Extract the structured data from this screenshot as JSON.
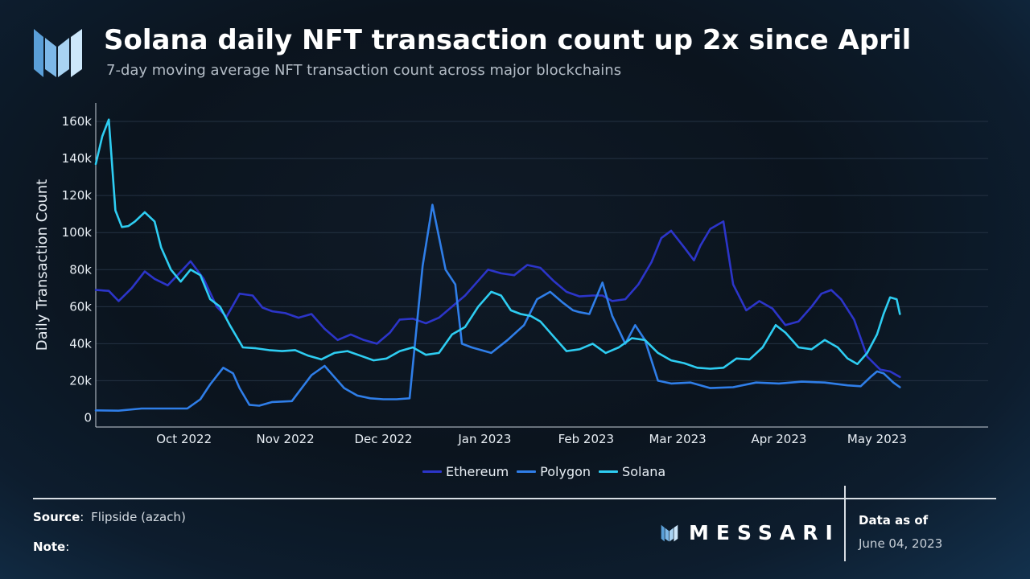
{
  "header": {
    "title": "Solana daily NFT transaction count up 2x since April",
    "subtitle": "7-day moving average NFT transaction count across major blockchains"
  },
  "footer": {
    "source_label": "Source",
    "source_value": "Flipside (azach)",
    "note_label": "Note",
    "brand": "MESSARI",
    "data_as_of_label": "Data as of",
    "data_as_of_date": "June 04, 2023"
  },
  "colors": {
    "Ethereum": "#2c35c9",
    "Polygon": "#2f7ee8",
    "Solana": "#2ecdf2",
    "grid": "#243243",
    "axis_text": "#e8eef4"
  },
  "chart_data": {
    "type": "line",
    "title": "Solana daily NFT transaction count up 2x since April",
    "ylabel": "Daily Transaction Count",
    "xlabel": "",
    "ylim": [
      -5000,
      170000
    ],
    "xlim": [
      "2022-09-04",
      "2023-06-04"
    ],
    "yticks": [
      0,
      20000,
      40000,
      60000,
      80000,
      100000,
      120000,
      140000,
      160000
    ],
    "ytick_labels": [
      "0",
      "20k",
      "40k",
      "60k",
      "80k",
      "100k",
      "120k",
      "140k",
      "160k"
    ],
    "xticks": [
      "2022-10-01",
      "2022-11-01",
      "2022-12-01",
      "2023-01-01",
      "2023-02-01",
      "2023-03-01",
      "2023-04-01",
      "2023-05-01"
    ],
    "xtick_labels": [
      "Oct 2022",
      "Nov 2022",
      "Dec 2022",
      "Jan 2023",
      "Feb 2023",
      "Mar 2023",
      "Apr 2023",
      "May 2023"
    ],
    "grid": true,
    "legend_position": "bottom-center",
    "series": [
      {
        "name": "Ethereum",
        "x": [
          "2022-09-04",
          "2022-09-08",
          "2022-09-11",
          "2022-09-15",
          "2022-09-19",
          "2022-09-22",
          "2022-09-26",
          "2022-09-29",
          "2022-10-03",
          "2022-10-07",
          "2022-10-11",
          "2022-10-14",
          "2022-10-18",
          "2022-10-22",
          "2022-10-25",
          "2022-10-28",
          "2022-11-01",
          "2022-11-05",
          "2022-11-09",
          "2022-11-13",
          "2022-11-17",
          "2022-11-21",
          "2022-11-25",
          "2022-11-29",
          "2022-12-03",
          "2022-12-06",
          "2022-12-10",
          "2022-12-14",
          "2022-12-18",
          "2022-12-22",
          "2022-12-26",
          "2022-12-29",
          "2023-01-02",
          "2023-01-06",
          "2023-01-10",
          "2023-01-14",
          "2023-01-18",
          "2023-01-22",
          "2023-01-26",
          "2023-01-30",
          "2023-02-03",
          "2023-02-06",
          "2023-02-09",
          "2023-02-13",
          "2023-02-17",
          "2023-02-21",
          "2023-02-24",
          "2023-02-27",
          "2023-03-03",
          "2023-03-06",
          "2023-03-08",
          "2023-03-11",
          "2023-03-15",
          "2023-03-18",
          "2023-03-22",
          "2023-03-26",
          "2023-03-30",
          "2023-04-03",
          "2023-04-07",
          "2023-04-11",
          "2023-04-14",
          "2023-04-17",
          "2023-04-20",
          "2023-04-24",
          "2023-04-28",
          "2023-05-02",
          "2023-05-05",
          "2023-05-08"
        ],
        "y": [
          69000,
          68500,
          63000,
          70000,
          79000,
          75000,
          71500,
          77000,
          84500,
          75000,
          60000,
          54500,
          67000,
          66000,
          59500,
          57500,
          56500,
          54000,
          56000,
          48000,
          42000,
          45000,
          42000,
          40000,
          46000,
          53000,
          53500,
          51000,
          54000,
          60000,
          66000,
          72000,
          80000,
          78000,
          77000,
          82500,
          81000,
          74000,
          68000,
          65500,
          66000,
          66000,
          63000,
          64000,
          72000,
          84000,
          97000,
          101000,
          92000,
          85000,
          93000,
          102000,
          106000,
          72000,
          58000,
          63000,
          59000,
          50000,
          52000,
          60000,
          67000,
          69000,
          64000,
          53000,
          33000,
          26000,
          25000,
          22000
        ]
      },
      {
        "name": "Polygon",
        "x": [
          "2022-09-04",
          "2022-09-11",
          "2022-09-18",
          "2022-09-25",
          "2022-10-02",
          "2022-10-06",
          "2022-10-09",
          "2022-10-13",
          "2022-10-16",
          "2022-10-18",
          "2022-10-21",
          "2022-10-24",
          "2022-10-28",
          "2022-11-03",
          "2022-11-09",
          "2022-11-13",
          "2022-11-16",
          "2022-11-19",
          "2022-11-23",
          "2022-11-27",
          "2022-12-01",
          "2022-12-05",
          "2022-12-09",
          "2022-12-13",
          "2022-12-16",
          "2022-12-20",
          "2022-12-23",
          "2022-12-25",
          "2022-12-28",
          "2023-01-03",
          "2023-01-08",
          "2023-01-13",
          "2023-01-17",
          "2023-01-21",
          "2023-01-25",
          "2023-01-28",
          "2023-01-30",
          "2023-02-02",
          "2023-02-06",
          "2023-02-09",
          "2023-02-13",
          "2023-02-16",
          "2023-02-19",
          "2023-02-23",
          "2023-02-27",
          "2023-03-05",
          "2023-03-11",
          "2023-03-18",
          "2023-03-25",
          "2023-04-01",
          "2023-04-08",
          "2023-04-15",
          "2023-04-22",
          "2023-04-26",
          "2023-04-29",
          "2023-05-01",
          "2023-05-03",
          "2023-05-06",
          "2023-05-08"
        ],
        "y": [
          4000,
          3800,
          5000,
          5000,
          5000,
          10000,
          18000,
          27000,
          24000,
          16000,
          7000,
          6500,
          8500,
          9000,
          23000,
          28000,
          22000,
          16000,
          12000,
          10500,
          10000,
          10000,
          10500,
          82000,
          115000,
          80000,
          72000,
          40000,
          38000,
          35000,
          42000,
          50000,
          64000,
          68000,
          62000,
          58000,
          57000,
          56000,
          73000,
          55000,
          40000,
          50000,
          42000,
          20000,
          18500,
          19000,
          16000,
          16500,
          19000,
          18500,
          19500,
          19000,
          17500,
          17000,
          22000,
          25000,
          24000,
          19000,
          16500
        ]
      },
      {
        "name": "Solana",
        "x": [
          "2022-09-04",
          "2022-09-06",
          "2022-09-08",
          "2022-09-10",
          "2022-09-12",
          "2022-09-14",
          "2022-09-16",
          "2022-09-19",
          "2022-09-22",
          "2022-09-24",
          "2022-09-27",
          "2022-09-30",
          "2022-10-03",
          "2022-10-06",
          "2022-10-09",
          "2022-10-12",
          "2022-10-15",
          "2022-10-19",
          "2022-10-23",
          "2022-10-27",
          "2022-10-31",
          "2022-11-04",
          "2022-11-08",
          "2022-11-12",
          "2022-11-16",
          "2022-11-20",
          "2022-11-24",
          "2022-11-28",
          "2022-12-02",
          "2022-12-06",
          "2022-12-10",
          "2022-12-14",
          "2022-12-18",
          "2022-12-22",
          "2022-12-26",
          "2022-12-30",
          "2023-01-03",
          "2023-01-06",
          "2023-01-09",
          "2023-01-12",
          "2023-01-15",
          "2023-01-18",
          "2023-01-22",
          "2023-01-26",
          "2023-01-30",
          "2023-02-03",
          "2023-02-07",
          "2023-02-11",
          "2023-02-15",
          "2023-02-19",
          "2023-02-23",
          "2023-02-27",
          "2023-03-03",
          "2023-03-07",
          "2023-03-11",
          "2023-03-15",
          "2023-03-19",
          "2023-03-23",
          "2023-03-27",
          "2023-03-31",
          "2023-04-03",
          "2023-04-07",
          "2023-04-11",
          "2023-04-15",
          "2023-04-19",
          "2023-04-22",
          "2023-04-25",
          "2023-04-28",
          "2023-05-01",
          "2023-05-03",
          "2023-05-05",
          "2023-05-07",
          "2023-05-08"
        ],
        "y": [
          137000,
          152000,
          161000,
          112000,
          103000,
          103500,
          106000,
          111000,
          106000,
          92000,
          80000,
          73500,
          80000,
          77000,
          64000,
          60000,
          50000,
          38000,
          37500,
          36500,
          36000,
          36500,
          33500,
          31500,
          35000,
          36000,
          33500,
          31000,
          32000,
          36000,
          38000,
          34000,
          35000,
          45000,
          49000,
          60000,
          68000,
          66000,
          58000,
          56000,
          55000,
          52000,
          44000,
          36000,
          37000,
          40000,
          35000,
          38000,
          43000,
          42000,
          35000,
          31000,
          29500,
          27000,
          26500,
          27000,
          32000,
          31500,
          38000,
          50000,
          46000,
          38000,
          37000,
          42000,
          38000,
          32000,
          29000,
          35000,
          45000,
          56000,
          65000,
          64000,
          56000
        ]
      }
    ]
  }
}
